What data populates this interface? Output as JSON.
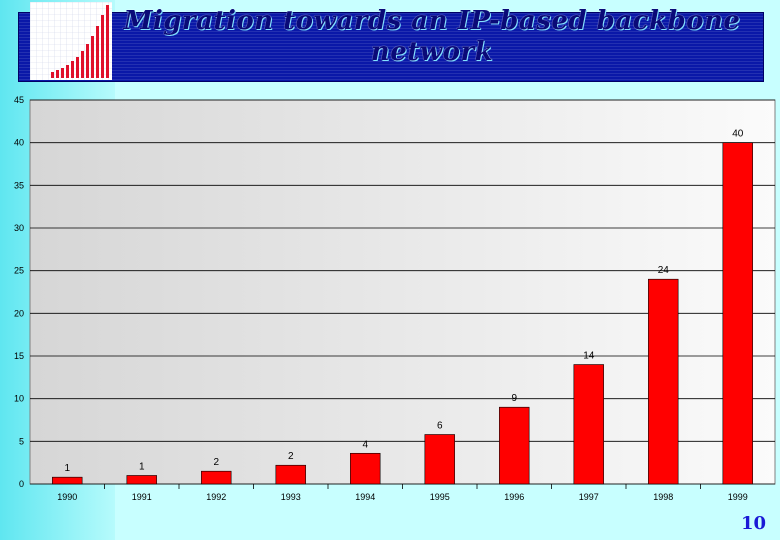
{
  "slide": {
    "title": "Migration towards an IP-based backbone network",
    "page_number": "10"
  },
  "colors": {
    "bar": "#ff0000",
    "title_bar": "#0a18a8",
    "title_text": "#0a0a78",
    "background": "#c8ffff"
  },
  "chart_data": {
    "type": "bar",
    "title": "",
    "xlabel": "",
    "ylabel": "",
    "categories": [
      "1990",
      "1991",
      "1992",
      "1993",
      "1994",
      "1995",
      "1996",
      "1997",
      "1998",
      "1999"
    ],
    "values": [
      0.8,
      1.0,
      1.5,
      2.2,
      3.6,
      5.8,
      9.0,
      14.0,
      24.0,
      40.0
    ],
    "data_labels": [
      "1",
      "1",
      "2",
      "2",
      "4",
      "6",
      "9",
      "14",
      "24",
      "40"
    ],
    "ylim": [
      0,
      45
    ],
    "yticks": [
      0,
      5,
      10,
      15,
      20,
      25,
      30,
      35,
      40,
      45
    ],
    "grid": true,
    "legend": "none"
  }
}
